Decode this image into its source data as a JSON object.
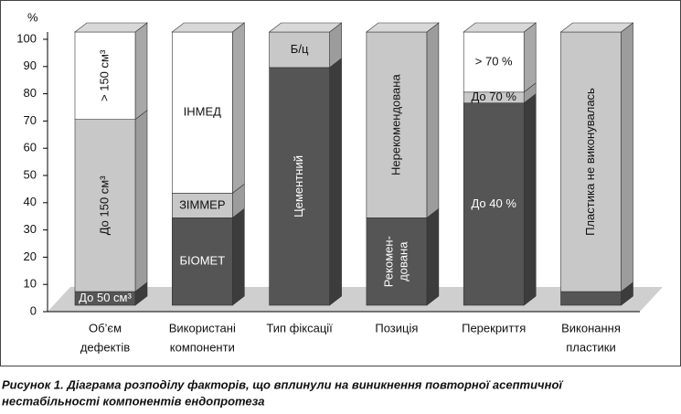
{
  "chart_data": {
    "type": "stacked-bar-3d",
    "ylabel": "%",
    "ylim": [
      0,
      100
    ],
    "yticks": [
      0,
      10,
      20,
      30,
      40,
      50,
      60,
      70,
      80,
      90,
      100
    ],
    "categories": [
      [
        "Об’єм",
        "дефектів"
      ],
      [
        "Використані",
        "компоненти"
      ],
      [
        "Тип фіксації"
      ],
      [
        "Позиція"
      ],
      [
        "Перекриття"
      ],
      [
        "Виконання",
        "пластики"
      ]
    ],
    "stacks": [
      [
        {
          "label": [
            "До 50 см³"
          ],
          "value": 5,
          "color": "#555555"
        },
        {
          "label": [
            "До 150 см³"
          ],
          "value": 63,
          "color": "#c8c8c8",
          "rotate": true
        },
        {
          "label": [
            "> 150 см³"
          ],
          "value": 32,
          "color": "#ffffff",
          "rotate": true
        }
      ],
      [
        {
          "label": [
            "БІОМЕТ"
          ],
          "value": 32,
          "color": "#555555"
        },
        {
          "label": [
            "ЗІММЕР"
          ],
          "value": 9,
          "color": "#c8c8c8"
        },
        {
          "label": [
            "ІНМЕД"
          ],
          "value": 59,
          "color": "#ffffff"
        }
      ],
      [
        {
          "label": [
            "Цементний"
          ],
          "value": 87,
          "color": "#555555",
          "rotate": true
        },
        {
          "label": [
            "Б/ц"
          ],
          "value": 13,
          "color": "#c8c8c8"
        }
      ],
      [
        {
          "label": [
            "Рекомен-",
            "дована"
          ],
          "value": 32,
          "color": "#555555",
          "rotate": true
        },
        {
          "label": [
            "Нерекомендована"
          ],
          "value": 68,
          "color": "#c8c8c8",
          "rotate": true
        }
      ],
      [
        {
          "label": [
            "До 40 %"
          ],
          "value": 74,
          "color": "#555555"
        },
        {
          "label": [
            "До 70 %"
          ],
          "value": 4,
          "color": "#c8c8c8"
        },
        {
          "label": [
            "> 70 %"
          ],
          "value": 22,
          "color": "#ffffff"
        }
      ],
      [
        {
          "value": 5,
          "color": "#555555"
        },
        {
          "label": [
            "Пластика не виконувалась"
          ],
          "value": 95,
          "color": "#c8c8c8",
          "rotate": true
        }
      ]
    ],
    "caption": [
      "Рисунок 1. Діаграма розподілу факторів, що вплинули на виникнення повторної асептичної",
      "нестабільності компонентів ендопротеза"
    ]
  }
}
